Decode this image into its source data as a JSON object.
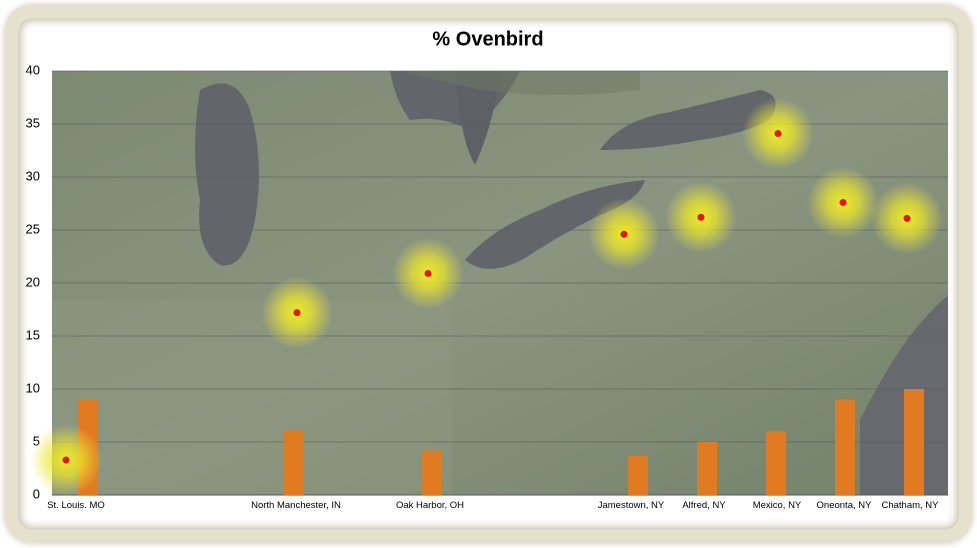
{
  "chart_data": {
    "type": "combo",
    "title": "% Ovenbird",
    "categories": [
      "St. Louis. MO",
      "North Manchester, IN",
      "Oak Harbor, OH",
      "Jamestown, NY",
      "Alfred, NY",
      "Mexico, NY",
      "Oneonta, NY",
      "Chatham, NY"
    ],
    "series": [
      {
        "type": "scatter",
        "color": "#e8141c",
        "values": [
          3.3,
          17.2,
          20.9,
          24.6,
          26.2,
          34.1,
          27.6,
          26.1
        ]
      },
      {
        "type": "bar",
        "color": "#e07b22",
        "values": [
          9.0,
          6.1,
          4.2,
          3.7,
          5.0,
          6.0,
          9.0,
          10.0
        ]
      }
    ],
    "ylim": [
      0,
      40
    ],
    "yticks": [
      0,
      5,
      10,
      15,
      20,
      25,
      30,
      35,
      40
    ],
    "grid": true
  }
}
